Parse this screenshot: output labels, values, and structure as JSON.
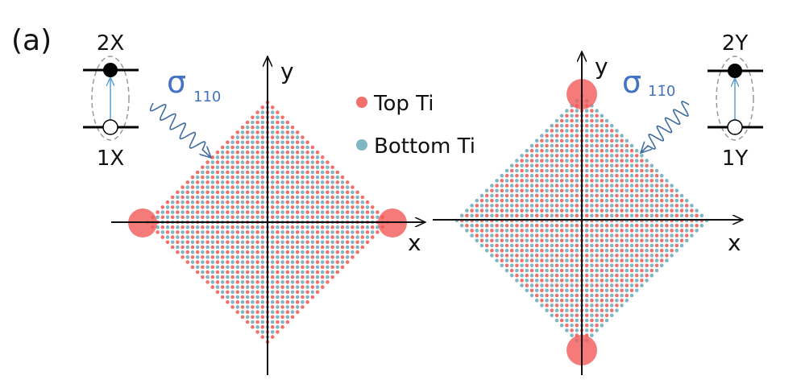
{
  "panel_label": "(a)",
  "colors": {
    "top_ti": "#f0706c",
    "bottom_ti": "#7fb6c4",
    "highlight": "#f25a5a",
    "photon": "#3f6c9e",
    "sigma_text": "#4472c4",
    "transition_arrow": "#5b9bd5"
  },
  "legend": {
    "items": [
      {
        "label": "Top Ti",
        "color": "#f0706c"
      },
      {
        "label": "Bottom Ti",
        "color": "#7fb6c4"
      }
    ]
  },
  "left_panel": {
    "axis_x": "x",
    "axis_y": "y",
    "polarization_symbol": "σ",
    "polarization_subscript": "110",
    "upper_level": "2X",
    "lower_level": "1X",
    "highlighted_corners": [
      "left",
      "right"
    ]
  },
  "right_panel": {
    "axis_x": "x",
    "axis_y": "y",
    "polarization_symbol": "σ",
    "polarization_subscript": "11̄0",
    "upper_level": "2Y",
    "lower_level": "1Y",
    "highlighted_corners": [
      "top",
      "bottom"
    ]
  }
}
